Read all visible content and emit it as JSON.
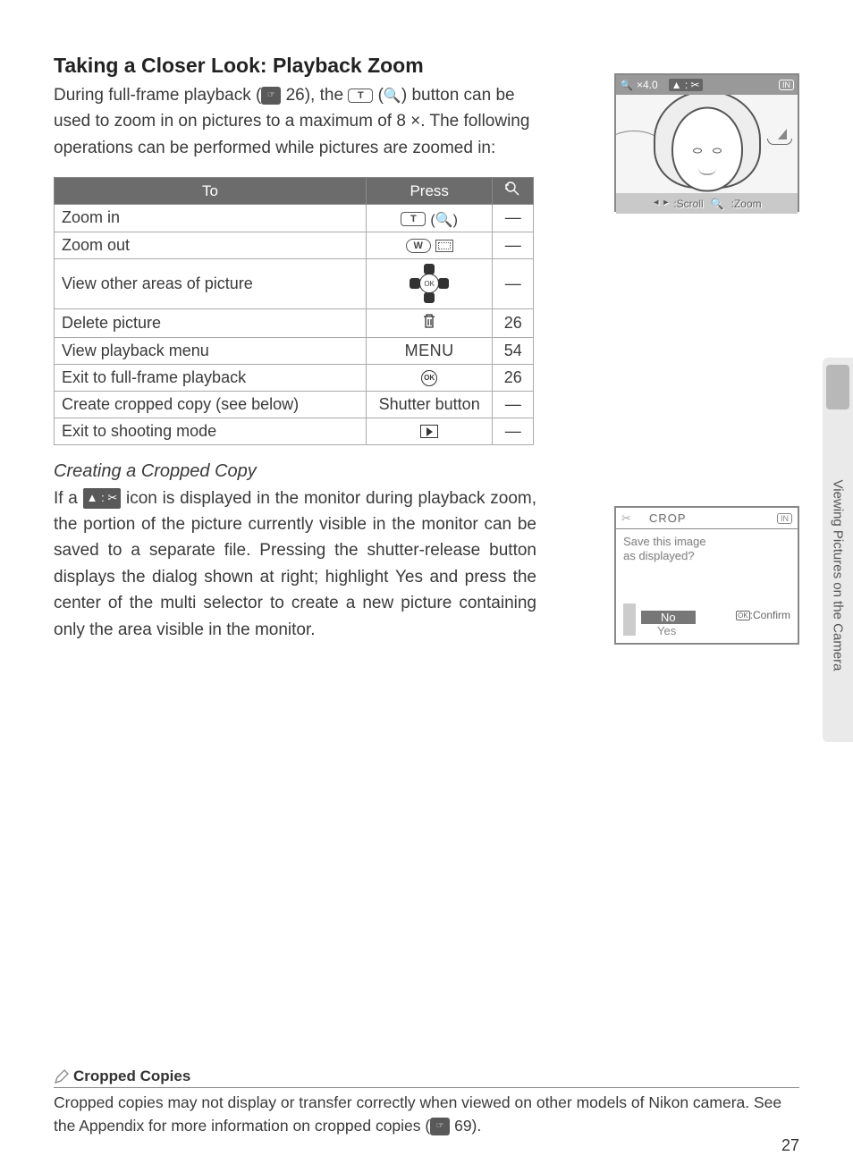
{
  "title": "Taking a Closer Look: Playback Zoom",
  "intro_parts": {
    "p1": "During full-frame playback (",
    "ref1": "26), the ",
    "p2": " button can be used to zoom in on pictures to a maximum of 8 ×.  The following operations can be performed while pictures are zoomed in:"
  },
  "zoom_screenshot": {
    "zoom_label": "×4.0",
    "in_badge": "IN",
    "scroll_label": ":Scroll",
    "zoom_hint": ":Zoom"
  },
  "table": {
    "headers": {
      "to": "To",
      "press": "Press",
      "ref": ""
    },
    "rows": [
      {
        "to": "Zoom in",
        "press_type": "t",
        "ref": "—"
      },
      {
        "to": "Zoom out",
        "press_type": "w",
        "ref": "—"
      },
      {
        "to": "View other areas of picture",
        "press_type": "multi",
        "ref": "—",
        "tall": true
      },
      {
        "to": "Delete picture",
        "press_type": "trash",
        "ref": "26"
      },
      {
        "to": "View playback menu",
        "press_type": "menu",
        "press_text": "MENU",
        "ref": "54"
      },
      {
        "to": "Exit to full-frame playback",
        "press_type": "ok",
        "ref": "26"
      },
      {
        "to": "Create cropped copy (see below)",
        "press_type": "text",
        "press_text": "Shutter button",
        "ref": "—"
      },
      {
        "to": "Exit to shooting mode",
        "press_type": "play",
        "ref": "—"
      }
    ]
  },
  "crop": {
    "subhead": "Creating a Cropped Copy",
    "para_parts": {
      "p1": "If a ",
      "p2": " icon is displayed in the monitor during playback zoom, the portion of the picture currently visible in the monitor can be saved to a separate file. Pressing the shutter-release button displays the dialog shown at right; highlight ",
      "bold": "Yes",
      "p3": " and press the center of the multi selector to create a new picture containing only the area visible in the monitor."
    }
  },
  "crop_screenshot": {
    "title": "CROP",
    "in_badge": "IN",
    "q1": "Save this image",
    "q2": "as displayed?",
    "no": "No",
    "yes": "Yes",
    "confirm": ":Confirm"
  },
  "side_tab": "Viewing Pictures on the Camera",
  "note": {
    "title": "Cropped Copies",
    "body_parts": {
      "p1": "Cropped copies may not display or transfer correctly when viewed on other models of Nikon camera.  See the Appendix for more information on cropped copies (",
      "ref": "69)."
    }
  },
  "page_number": "27",
  "colors": {
    "header_bg": "#6c6c6c",
    "text": "#3a3a3a",
    "border": "#aaaaaa"
  }
}
